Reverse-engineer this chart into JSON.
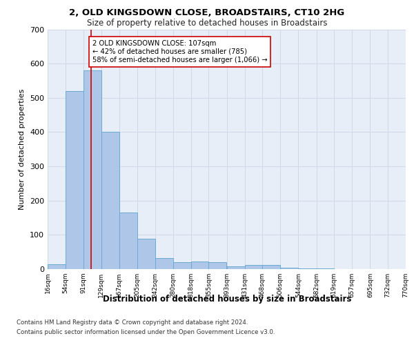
{
  "title1": "2, OLD KINGSDOWN CLOSE, BROADSTAIRS, CT10 2HG",
  "title2": "Size of property relative to detached houses in Broadstairs",
  "xlabel": "Distribution of detached houses by size in Broadstairs",
  "ylabel": "Number of detached properties",
  "bin_edges": [
    16,
    54,
    91,
    129,
    167,
    205,
    242,
    280,
    318,
    355,
    393,
    431,
    468,
    506,
    544,
    582,
    619,
    657,
    695,
    732,
    770
  ],
  "bar_heights": [
    15,
    520,
    580,
    400,
    165,
    88,
    33,
    20,
    22,
    20,
    8,
    12,
    12,
    5,
    3,
    2,
    1,
    1,
    1,
    1
  ],
  "tick_labels": [
    "16sqm",
    "54sqm",
    "91sqm",
    "129sqm",
    "167sqm",
    "205sqm",
    "242sqm",
    "280sqm",
    "318sqm",
    "355sqm",
    "393sqm",
    "431sqm",
    "468sqm",
    "506sqm",
    "544sqm",
    "582sqm",
    "619sqm",
    "657sqm",
    "695sqm",
    "732sqm",
    "770sqm"
  ],
  "bar_color": "#aec6e8",
  "bar_edge_color": "#6aaad4",
  "vline_x": 107,
  "vline_color": "#cc0000",
  "annotation_text": "2 OLD KINGSDOWN CLOSE: 107sqm\n← 42% of detached houses are smaller (785)\n58% of semi-detached houses are larger (1,066) →",
  "annotation_box_color": "#ffffff",
  "annotation_box_edge": "#cc0000",
  "ylim": [
    0,
    700
  ],
  "yticks": [
    0,
    100,
    200,
    300,
    400,
    500,
    600,
    700
  ],
  "grid_color": "#d0d8e8",
  "background_color": "#e8eef8",
  "footer1": "Contains HM Land Registry data © Crown copyright and database right 2024.",
  "footer2": "Contains public sector information licensed under the Open Government Licence v3.0."
}
